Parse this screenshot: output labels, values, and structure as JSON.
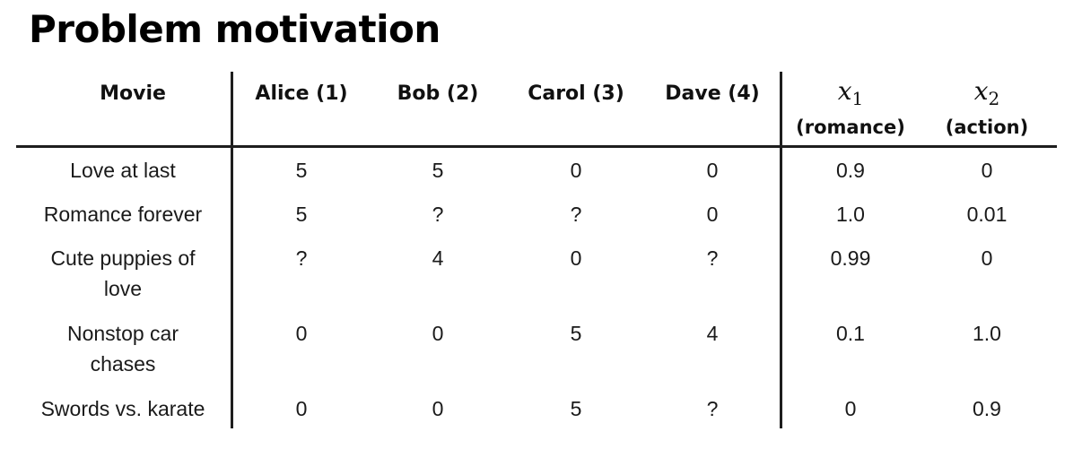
{
  "title": "Problem motivation",
  "columns": {
    "movie": "Movie",
    "users": [
      "Alice (1)",
      "Bob (2)",
      "Carol (3)",
      "Dave (4)"
    ],
    "features": [
      {
        "var": "x",
        "sub": "1",
        "label": "(romance)"
      },
      {
        "var": "x",
        "sub": "2",
        "label": "(action)"
      }
    ]
  },
  "rows": [
    {
      "movie": [
        "Love at last"
      ],
      "ratings": [
        "5",
        "5",
        "0",
        "0"
      ],
      "features": [
        "0.9",
        "0"
      ]
    },
    {
      "movie": [
        "Romance forever"
      ],
      "ratings": [
        "5",
        "?",
        "?",
        "0"
      ],
      "features": [
        "1.0",
        "0.01"
      ]
    },
    {
      "movie": [
        "Cute puppies of",
        "love"
      ],
      "ratings": [
        "?",
        "4",
        "0",
        "?"
      ],
      "features": [
        "0.99",
        "0"
      ]
    },
    {
      "movie": [
        "Nonstop car",
        "chases"
      ],
      "ratings": [
        "0",
        "0",
        "5",
        "4"
      ],
      "features": [
        "0.1",
        "1.0"
      ]
    },
    {
      "movie": [
        "Swords vs. karate"
      ],
      "ratings": [
        "0",
        "0",
        "5",
        "?"
      ],
      "features": [
        "0",
        "0.9"
      ]
    }
  ]
}
